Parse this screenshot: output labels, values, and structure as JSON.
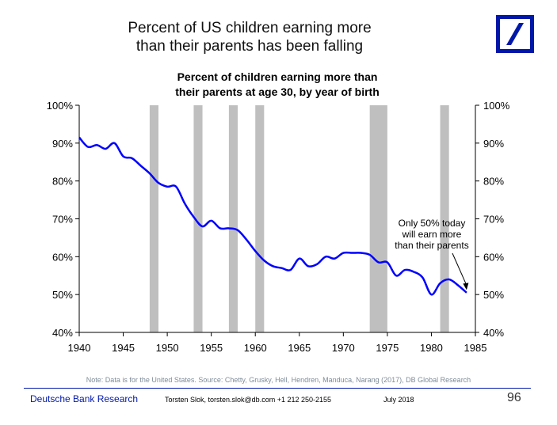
{
  "slide": {
    "title_line1": "Percent of US children earning more",
    "title_line2": "than their parents has been falling"
  },
  "logo": {
    "icon": "deutsche-bank-slash-logo",
    "color": "#0018a8"
  },
  "chart_data": {
    "type": "line",
    "title_line1": "Percent of children earning more than",
    "title_line2": "their parents at age 30, by year of birth",
    "xlim": [
      1940,
      1985
    ],
    "ylim": [
      40,
      100
    ],
    "x_ticks": [
      1940,
      1945,
      1950,
      1955,
      1960,
      1965,
      1970,
      1975,
      1980,
      1985
    ],
    "y_ticks": [
      40,
      50,
      60,
      70,
      80,
      90,
      100
    ],
    "y_tick_labels": [
      "40%",
      "50%",
      "60%",
      "70%",
      "80%",
      "90%",
      "100%"
    ],
    "dual_y_axis": true,
    "grid": false,
    "line_color": "#0000ff",
    "recession_color": "#bfbfbf",
    "recessions": [
      [
        1948,
        1949
      ],
      [
        1953,
        1954
      ],
      [
        1957,
        1958
      ],
      [
        1960,
        1961
      ],
      [
        1973,
        1975
      ],
      [
        1981,
        1982
      ]
    ],
    "series": [
      {
        "x": [
          1940,
          1941,
          1942,
          1943,
          1944,
          1945,
          1946,
          1947,
          1948,
          1949,
          1950,
          1951,
          1952,
          1953,
          1954,
          1955,
          1956,
          1957,
          1958,
          1959,
          1960,
          1961,
          1962,
          1963,
          1964,
          1965,
          1966,
          1967,
          1968,
          1969,
          1970,
          1971,
          1972,
          1973,
          1974,
          1975,
          1976,
          1977,
          1978,
          1979,
          1980,
          1981,
          1982,
          1983,
          1984
        ],
        "values": [
          91.5,
          89,
          89.5,
          88.5,
          90,
          86.5,
          86,
          84,
          82,
          79.5,
          78.5,
          78.5,
          74,
          70.5,
          68,
          69.5,
          67.5,
          67.5,
          67,
          64.5,
          61.5,
          59,
          57.5,
          57,
          56.5,
          59.5,
          57.5,
          58,
          60,
          59.5,
          61,
          61,
          61,
          60.5,
          58.5,
          58.5,
          55,
          56.5,
          56,
          54.5,
          50,
          53,
          54,
          52.5,
          50.5
        ]
      }
    ],
    "annotation": {
      "line1": "Only 50% today",
      "line2": "will earn more",
      "line3": "than their parents",
      "arrow_to": [
        1984,
        51.2
      ]
    }
  },
  "note": "Note: Data is for the United States. Source: Chetty, Grusky, Hell, Hendren, Manduca, Narang (2017), DB Global Research",
  "footer": {
    "brand": "Deutsche Bank Research",
    "contact": "Torsten Slok, torsten.slok@db.com  +1 212 250-2155",
    "date": "July 2018",
    "page": "96"
  }
}
